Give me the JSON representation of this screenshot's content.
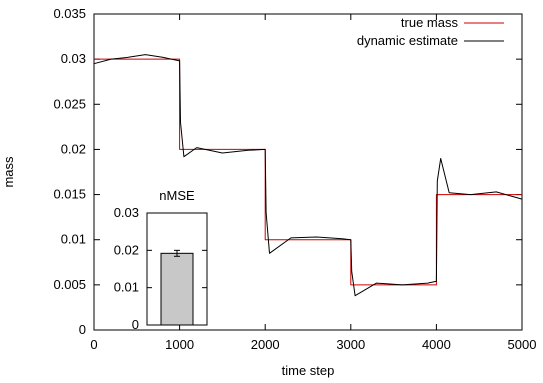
{
  "chart_data": [
    {
      "type": "line",
      "title": "",
      "xlabel": "time step",
      "ylabel": "mass",
      "xlim": [
        0,
        5000
      ],
      "ylim": [
        0,
        0.035
      ],
      "xticks": [
        0,
        1000,
        2000,
        3000,
        4000,
        5000
      ],
      "xtick_labels": [
        "0",
        "1000",
        "2000",
        "3000",
        "4000",
        "5000"
      ],
      "yticks": [
        0,
        0.005,
        0.01,
        0.015,
        0.02,
        0.025,
        0.03,
        0.035
      ],
      "ytick_labels": [
        "0",
        "0.005",
        "0.01",
        "0.015",
        "0.02",
        "0.025",
        "0.03",
        "0.035"
      ],
      "grid": false,
      "legend_position": "top-right",
      "series": [
        {
          "name": "true mass",
          "color": "#cc0000",
          "x": [
            0,
            1000,
            1000,
            2000,
            2000,
            3000,
            3000,
            4000,
            4000,
            5000
          ],
          "y": [
            0.03,
            0.03,
            0.02,
            0.02,
            0.01,
            0.01,
            0.005,
            0.005,
            0.015,
            0.015
          ]
        },
        {
          "name": "dynamic estimate",
          "color": "#000000",
          "x": [
            0,
            200,
            400,
            600,
            800,
            1000,
            1010,
            1050,
            1200,
            1500,
            1800,
            2000,
            2010,
            2050,
            2300,
            2600,
            2900,
            3000,
            3010,
            3050,
            3300,
            3600,
            3900,
            4000,
            4010,
            4050,
            4150,
            4400,
            4700,
            5000
          ],
          "y": [
            0.0295,
            0.03,
            0.0302,
            0.0305,
            0.0302,
            0.0298,
            0.023,
            0.0192,
            0.0202,
            0.0196,
            0.0199,
            0.02,
            0.013,
            0.0085,
            0.0102,
            0.0103,
            0.0101,
            0.01,
            0.0065,
            0.0038,
            0.0052,
            0.005,
            0.0052,
            0.0054,
            0.0165,
            0.019,
            0.0152,
            0.015,
            0.0153,
            0.0145
          ]
        }
      ]
    },
    {
      "type": "bar",
      "title": "nMSE",
      "categories": [
        ""
      ],
      "values": [
        0.0192
      ],
      "error": [
        0.0008
      ],
      "ylim": [
        0,
        0.03
      ],
      "yticks": [
        0,
        0.01,
        0.02,
        0.03
      ],
      "ytick_labels": [
        "0",
        "0.01",
        "0.02",
        "0.03"
      ],
      "bar_color": "#c8c8c8"
    }
  ]
}
